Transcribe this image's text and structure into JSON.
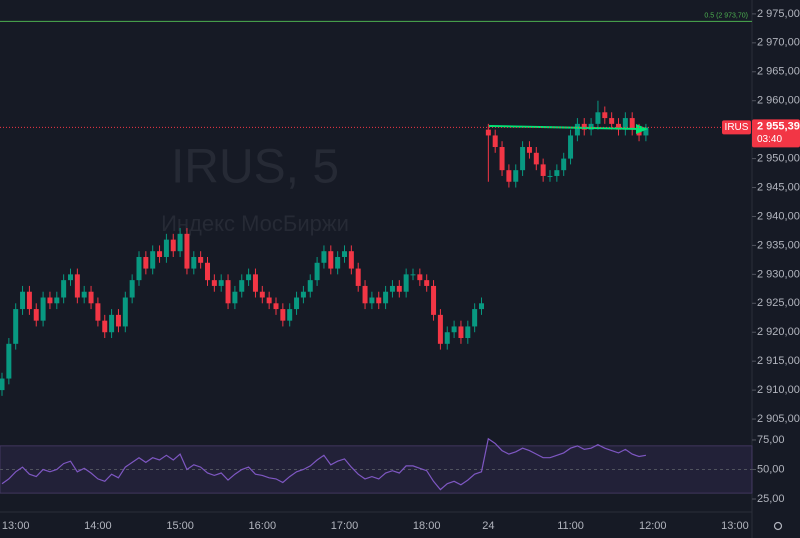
{
  "chart_data": {
    "type": "candlestick",
    "watermark": {
      "title": "IRUS, 5",
      "subtitle": "Индекс МосБиржи"
    },
    "categories": [
      null,
      null,
      "13:00",
      null,
      null,
      null,
      null,
      null,
      null,
      null,
      null,
      null,
      null,
      null,
      "14:00",
      null,
      null,
      null,
      null,
      null,
      null,
      null,
      null,
      null,
      null,
      null,
      "15:00",
      null,
      null,
      null,
      null,
      null,
      null,
      null,
      null,
      null,
      null,
      null,
      "16:00",
      null,
      null,
      null,
      null,
      null,
      null,
      null,
      null,
      null,
      null,
      null,
      "17:00",
      null,
      null,
      null,
      null,
      null,
      null,
      null,
      null,
      null,
      null,
      null,
      "18:00",
      null,
      null,
      null,
      null,
      null,
      null,
      null,
      null,
      "24",
      null,
      null,
      null,
      null,
      null,
      null,
      null,
      null,
      null,
      null,
      null,
      "11:00",
      null,
      null,
      null,
      null,
      null,
      null,
      null,
      null,
      null,
      null,
      null,
      "12:00",
      null,
      null,
      null,
      null,
      null,
      null,
      null,
      null,
      null,
      null,
      null,
      "13:00"
    ],
    "open": [
      2910,
      2912,
      2918,
      2924,
      2927,
      2924,
      2922,
      2926,
      2925,
      2926,
      2929,
      2930,
      2926,
      2927,
      2925,
      2922,
      2920,
      2923,
      2921,
      2926,
      2929,
      2933,
      2931,
      2934,
      2933,
      2936,
      2934,
      2937,
      2931,
      2933,
      2932,
      2929,
      2928,
      2929,
      2925,
      2927,
      2929,
      2930,
      2927,
      2926,
      2925,
      2924,
      2922,
      2924,
      2926,
      2927,
      2929,
      2932,
      2934,
      2931,
      2933,
      2934,
      2931,
      2928,
      2925,
      2926,
      2925,
      2927,
      2928,
      2927,
      2930,
      2930,
      2929,
      2928,
      2923,
      2918,
      2920,
      2921,
      2919,
      2921,
      2924,
      2955,
      2954,
      2952,
      2948,
      2946,
      2948,
      2952,
      2951,
      2949,
      2947,
      2947,
      2948,
      2950,
      2954,
      2956,
      2955,
      2956,
      2958,
      2957,
      2956,
      2955,
      2957,
      2955,
      2954,
      null,
      null,
      null,
      null,
      null,
      null,
      null,
      null,
      null,
      null,
      null,
      null,
      null
    ],
    "high": [
      2913,
      2919,
      2925,
      2928,
      2928,
      2925,
      2927,
      2927,
      2927,
      2930,
      2931,
      2931,
      2928,
      2928,
      2926,
      2923,
      2924,
      2924,
      2927,
      2930,
      2934,
      2934,
      2935,
      2935,
      2937,
      2937,
      2938,
      2938,
      2934,
      2934,
      2933,
      2930,
      2930,
      2930,
      2928,
      2930,
      2931,
      2931,
      2928,
      2927,
      2926,
      2925,
      2925,
      2927,
      2928,
      2930,
      2933,
      2935,
      2935,
      2934,
      2935,
      2935,
      2932,
      2929,
      2927,
      2927,
      2928,
      2929,
      2929,
      2931,
      2931,
      2931,
      2930,
      2929,
      2924,
      2921,
      2922,
      2922,
      2922,
      2925,
      2926,
      2956,
      2955,
      2953,
      2949,
      2949,
      2953,
      2953,
      2952,
      2950,
      2948,
      2949,
      2951,
      2955,
      2957,
      2957,
      2957,
      2960,
      2959,
      2958,
      2957,
      2958,
      2958,
      2956,
      2956,
      null,
      null,
      null,
      null,
      null,
      null,
      null,
      null,
      null,
      null,
      null,
      null,
      null
    ],
    "low": [
      2909,
      2911,
      2917,
      2923,
      2923,
      2921,
      2921,
      2924,
      2924,
      2925,
      2928,
      2925,
      2925,
      2924,
      2921,
      2919,
      2919,
      2920,
      2920,
      2925,
      2928,
      2930,
      2930,
      2932,
      2932,
      2933,
      2933,
      2930,
      2930,
      2931,
      2928,
      2927,
      2927,
      2924,
      2924,
      2926,
      2928,
      2926,
      2925,
      2924,
      2923,
      2921,
      2921,
      2923,
      2925,
      2926,
      2928,
      2931,
      2930,
      2930,
      2932,
      2930,
      2927,
      2924,
      2924,
      2924,
      2924,
      2926,
      2926,
      2926,
      2929,
      2928,
      2927,
      2922,
      2917,
      2917,
      2919,
      2918,
      2918,
      2920,
      2923,
      2946,
      2951,
      2947,
      2945,
      2945,
      2947,
      2950,
      2948,
      2946,
      2946,
      2946,
      2947,
      2949,
      2953,
      2954,
      2954,
      2955,
      2956,
      2955,
      2954,
      2954,
      2954,
      2953,
      2953,
      null,
      null,
      null,
      null,
      null,
      null,
      null,
      null,
      null,
      null,
      null,
      null,
      null
    ],
    "close": [
      2912,
      2918,
      2924,
      2927,
      2924,
      2922,
      2926,
      2925,
      2926,
      2929,
      2930,
      2926,
      2927,
      2925,
      2922,
      2920,
      2923,
      2921,
      2926,
      2929,
      2933,
      2931,
      2934,
      2933,
      2936,
      2934,
      2937,
      2931,
      2933,
      2932,
      2929,
      2928,
      2929,
      2925,
      2927,
      2929,
      2930,
      2927,
      2926,
      2925,
      2924,
      2922,
      2924,
      2926,
      2927,
      2929,
      2932,
      2934,
      2931,
      2933,
      2934,
      2931,
      2928,
      2925,
      2926,
      2925,
      2927,
      2928,
      2927,
      2930,
      2930,
      2929,
      2928,
      2923,
      2918,
      2920,
      2921,
      2919,
      2921,
      2924,
      2925,
      2954,
      2952,
      2948,
      2946,
      2948,
      2952,
      2951,
      2949,
      2947,
      2947,
      2948,
      2950,
      2954,
      2956,
      2955,
      2956,
      2958,
      2957,
      2956,
      2955,
      2957,
      2955,
      2954,
      2955.39,
      null,
      null,
      null,
      null,
      null,
      null,
      null,
      null,
      null,
      null,
      null,
      null,
      null
    ],
    "up_color": "#089981",
    "down_color": "#f23645",
    "ylim": [
      2901.9,
      2977.4
    ],
    "yticks": [
      {
        "value": 2975,
        "label": "2 975,00"
      },
      {
        "value": 2970,
        "label": "2 970,00"
      },
      {
        "value": 2965,
        "label": "2 965,00"
      },
      {
        "value": 2960,
        "label": "2 960,00"
      },
      {
        "value": 2955,
        "label": "2 955,00"
      },
      {
        "value": 2950,
        "label": "2 950,00"
      },
      {
        "value": 2945,
        "label": "2 945,00"
      },
      {
        "value": 2940,
        "label": "2 940,00"
      },
      {
        "value": 2935,
        "label": "2 935,00"
      },
      {
        "value": 2930,
        "label": "2 930,00"
      },
      {
        "value": 2925,
        "label": "2 925,00"
      },
      {
        "value": 2920,
        "label": "2 920,00"
      },
      {
        "value": 2915,
        "label": "2 915,00"
      },
      {
        "value": 2910,
        "label": "2 910,00"
      },
      {
        "value": 2905,
        "label": "2 905,00"
      }
    ],
    "level": {
      "value": 2973.7,
      "label": "0.5 (2 973,70)",
      "color": "#4caf50"
    },
    "last_price": {
      "value": 2955.39,
      "label": "2 955,39",
      "symbol": "IRUS",
      "countdown": "03:40",
      "color": "#f23645"
    },
    "rsi": {
      "color": "#7e57c2",
      "values": [
        38,
        42,
        48,
        52,
        46,
        44,
        50,
        48,
        50,
        55,
        57,
        48,
        51,
        47,
        42,
        40,
        46,
        43,
        52,
        56,
        60,
        56,
        60,
        58,
        62,
        58,
        63,
        50,
        54,
        52,
        47,
        45,
        47,
        41,
        46,
        50,
        52,
        46,
        45,
        43,
        42,
        39,
        44,
        48,
        50,
        53,
        58,
        62,
        54,
        57,
        59,
        52,
        46,
        42,
        44,
        42,
        47,
        49,
        47,
        53,
        53,
        51,
        49,
        40,
        33,
        38,
        40,
        37,
        41,
        46,
        48,
        76,
        72,
        66,
        63,
        65,
        68,
        66,
        63,
        60,
        60,
        62,
        64,
        68,
        70,
        67,
        68,
        71,
        68,
        66,
        64,
        67,
        63,
        61,
        62,
        null,
        null,
        null,
        null,
        null,
        null,
        null,
        null,
        null,
        null,
        null,
        null,
        null
      ],
      "ylim": [
        15.7,
        77.5
      ],
      "yticks": [
        {
          "value": 75,
          "label": "75,00"
        },
        {
          "value": 50,
          "label": "50,00"
        },
        {
          "value": 25,
          "label": "25,00"
        }
      ],
      "band": [
        30,
        70
      ]
    }
  }
}
